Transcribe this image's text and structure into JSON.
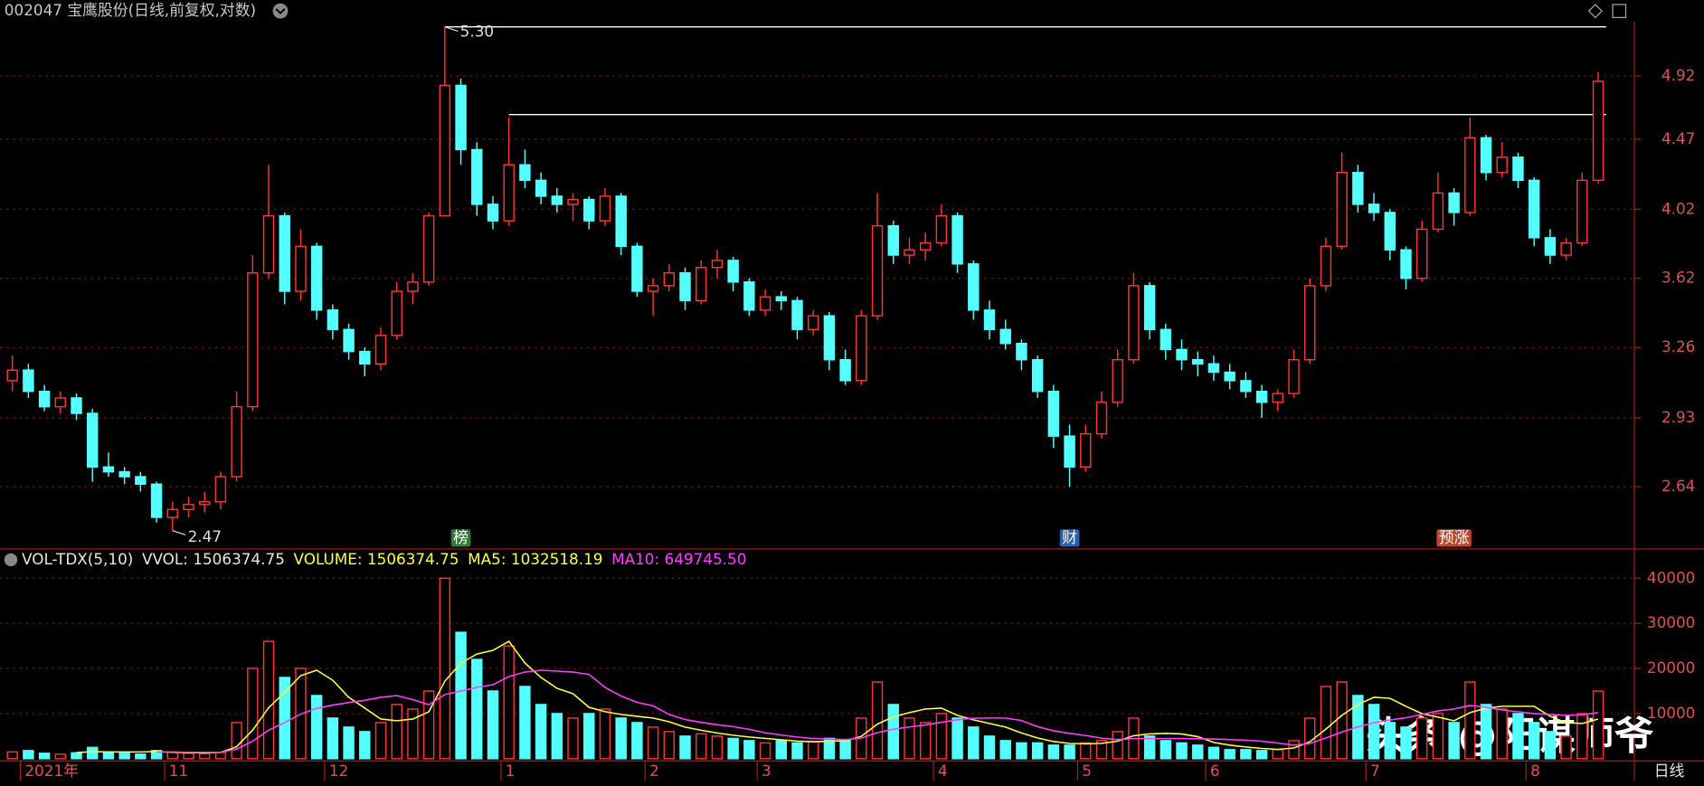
{
  "chart_data": [
    {
      "type": "candlestick",
      "title": "002047 宝鹰股份(日线,前复权,对数)",
      "log": true,
      "grid": true,
      "ylim": [
        2.41,
        5.34
      ],
      "yticks": [
        4.92,
        4.47,
        4.02,
        3.62,
        3.26,
        2.93,
        2.64
      ],
      "xlim": [
        -0.5,
        99.5
      ],
      "xticks": [
        {
          "value": 1,
          "label": "2021年"
        },
        {
          "value": 10,
          "label": "11"
        },
        {
          "value": 20,
          "label": "12"
        },
        {
          "value": 31,
          "label": "1"
        },
        {
          "value": 40,
          "label": "2"
        },
        {
          "value": 47,
          "label": "3"
        },
        {
          "value": 58,
          "label": "4"
        },
        {
          "value": 67,
          "label": "5"
        },
        {
          "value": 75,
          "label": "6"
        },
        {
          "value": 85,
          "label": "7"
        },
        {
          "value": 95,
          "label": "8"
        }
      ],
      "period_label": "日线",
      "up_color": "#ff3232",
      "down_color": "#54ffff",
      "open": [
        3.1,
        3.15,
        3.05,
        2.98,
        3.02,
        2.95,
        2.72,
        2.7,
        2.68,
        2.65,
        2.52,
        2.55,
        2.57,
        2.58,
        2.68,
        2.98,
        3.65,
        3.98,
        3.55,
        3.8,
        3.45,
        3.35,
        3.24,
        3.18,
        3.32,
        3.55,
        3.6,
        3.98,
        4.85,
        4.4,
        4.05,
        3.95,
        4.3,
        4.2,
        4.1,
        4.05,
        4.08,
        3.95,
        4.1,
        3.8,
        3.55,
        3.58,
        3.65,
        3.5,
        3.68,
        3.72,
        3.6,
        3.45,
        3.52,
        3.5,
        3.35,
        3.42,
        3.2,
        3.1,
        3.42,
        3.92,
        3.75,
        3.78,
        3.82,
        3.98,
        3.7,
        3.45,
        3.35,
        3.28,
        3.2,
        3.05,
        2.85,
        2.72,
        2.86,
        3.0,
        3.2,
        3.58,
        3.35,
        3.25,
        3.2,
        3.18,
        3.14,
        3.1,
        3.05,
        3.0,
        3.04,
        3.2,
        3.58,
        3.8,
        4.25,
        4.05,
        4.0,
        3.78,
        3.62,
        3.9,
        4.12,
        4.0,
        4.48,
        4.25,
        4.35,
        4.2,
        3.85,
        3.75,
        3.82,
        4.2
      ],
      "high": [
        3.22,
        3.18,
        3.08,
        3.05,
        3.04,
        2.97,
        2.78,
        2.72,
        2.7,
        2.66,
        2.58,
        2.6,
        2.62,
        2.7,
        3.05,
        3.75,
        4.3,
        4.0,
        3.9,
        3.82,
        3.48,
        3.38,
        3.26,
        3.36,
        3.6,
        3.65,
        4.0,
        5.3,
        4.9,
        4.45,
        4.1,
        4.62,
        4.4,
        4.25,
        4.15,
        4.12,
        4.1,
        4.15,
        4.12,
        3.82,
        3.62,
        3.7,
        3.68,
        3.72,
        3.78,
        3.74,
        3.62,
        3.56,
        3.55,
        3.52,
        3.45,
        3.44,
        3.25,
        3.45,
        4.12,
        3.95,
        3.85,
        3.88,
        4.05,
        4.0,
        3.72,
        3.5,
        3.4,
        3.3,
        3.22,
        3.08,
        2.9,
        2.9,
        3.05,
        3.25,
        3.65,
        3.6,
        3.38,
        3.3,
        3.24,
        3.22,
        3.18,
        3.14,
        3.08,
        3.06,
        3.25,
        3.62,
        3.85,
        4.38,
        4.3,
        4.12,
        4.02,
        3.8,
        3.95,
        4.25,
        4.15,
        4.62,
        4.5,
        4.45,
        4.38,
        4.22,
        3.9,
        3.85,
        4.25,
        4.95
      ],
      "low": [
        3.05,
        3.02,
        2.96,
        2.95,
        2.92,
        2.66,
        2.68,
        2.65,
        2.62,
        2.5,
        2.47,
        2.52,
        2.54,
        2.55,
        2.66,
        2.96,
        3.62,
        3.48,
        3.5,
        3.4,
        3.3,
        3.2,
        3.12,
        3.15,
        3.3,
        3.48,
        3.58,
        3.98,
        4.3,
        3.98,
        3.9,
        3.92,
        4.15,
        4.05,
        4.0,
        3.95,
        3.9,
        3.92,
        3.75,
        3.52,
        3.42,
        3.55,
        3.45,
        3.48,
        3.62,
        3.55,
        3.42,
        3.42,
        3.45,
        3.3,
        3.32,
        3.15,
        3.08,
        3.08,
        3.4,
        3.7,
        3.7,
        3.72,
        3.8,
        3.65,
        3.4,
        3.3,
        3.25,
        3.15,
        3.02,
        2.8,
        2.64,
        2.7,
        2.84,
        2.98,
        3.18,
        3.3,
        3.2,
        3.15,
        3.12,
        3.1,
        3.06,
        3.02,
        2.93,
        2.96,
        3.02,
        3.18,
        3.55,
        3.78,
        4.0,
        3.95,
        3.72,
        3.56,
        3.6,
        3.88,
        3.92,
        3.98,
        4.2,
        4.22,
        4.15,
        3.8,
        3.7,
        3.72,
        3.8,
        4.18
      ],
      "close": [
        3.15,
        3.05,
        2.98,
        3.02,
        2.95,
        2.72,
        2.7,
        2.68,
        2.65,
        2.52,
        2.55,
        2.57,
        2.58,
        2.68,
        2.98,
        3.65,
        3.98,
        3.55,
        3.8,
        3.45,
        3.35,
        3.24,
        3.18,
        3.32,
        3.55,
        3.6,
        3.98,
        4.85,
        4.4,
        4.05,
        3.95,
        4.3,
        4.2,
        4.1,
        4.05,
        4.08,
        3.95,
        4.1,
        3.8,
        3.55,
        3.58,
        3.65,
        3.5,
        3.68,
        3.72,
        3.6,
        3.45,
        3.52,
        3.5,
        3.35,
        3.42,
        3.2,
        3.1,
        3.42,
        3.92,
        3.75,
        3.78,
        3.82,
        3.98,
        3.7,
        3.45,
        3.35,
        3.28,
        3.2,
        3.05,
        2.85,
        2.72,
        2.86,
        3.0,
        3.2,
        3.58,
        3.35,
        3.25,
        3.2,
        3.18,
        3.14,
        3.1,
        3.05,
        3.0,
        3.04,
        3.2,
        3.58,
        3.8,
        4.25,
        4.05,
        4.0,
        3.78,
        3.62,
        3.9,
        4.12,
        4.0,
        4.48,
        4.25,
        4.35,
        4.2,
        3.85,
        3.75,
        3.82,
        4.2,
        4.88
      ],
      "annotations": [
        {
          "index": 27,
          "value": 5.3,
          "label": "5.30"
        },
        {
          "index": 10,
          "value": 2.47,
          "label": "2.47"
        }
      ],
      "reference_lines": [
        {
          "start": 27,
          "value": 5.3
        },
        {
          "start": 31,
          "value": 4.64
        }
      ],
      "reference_color": "#ffffff",
      "events": [
        {
          "index": 28,
          "label": "榜",
          "color": "#2f7d32"
        },
        {
          "index": 66,
          "label": "财",
          "color": "#2a5fae"
        },
        {
          "index": 90,
          "label": "预涨",
          "color": "#c0452a"
        }
      ]
    },
    {
      "type": "volume",
      "indicator": "VOL-TDX(5,10)",
      "readouts": [
        {
          "text": "VVOL: 1506374.75",
          "color": "#e6e6e6"
        },
        {
          "text": "VOLUME: 1506374.75",
          "color": "#ffff3c"
        },
        {
          "text": "MA5: 1032518.19",
          "color": "#ffff3c"
        },
        {
          "text": "MA10: 649745.50",
          "color": "#ff3cff"
        }
      ],
      "ylim": [
        0,
        46000
      ],
      "yticks": [
        40000,
        30000,
        20000,
        10000
      ],
      "values": [
        1500,
        1800,
        1200,
        1000,
        1300,
        2500,
        1500,
        1200,
        1000,
        1800,
        1500,
        1200,
        1100,
        1400,
        8000,
        20000,
        26000,
        18000,
        20000,
        14000,
        9000,
        7000,
        6000,
        8000,
        12000,
        11000,
        15000,
        40000,
        28000,
        22000,
        15000,
        25000,
        16000,
        12000,
        10000,
        9000,
        10000,
        11000,
        9000,
        8000,
        7000,
        6000,
        5000,
        5500,
        5000,
        4500,
        4000,
        3500,
        4000,
        3500,
        3800,
        4500,
        4000,
        9000,
        17000,
        12000,
        9000,
        8000,
        10000,
        9000,
        7000,
        5000,
        4000,
        3500,
        3500,
        3000,
        3000,
        3500,
        4000,
        6000,
        9000,
        5000,
        4000,
        3500,
        3000,
        2500,
        2000,
        2000,
        1800,
        2000,
        4000,
        9000,
        16000,
        17000,
        14000,
        12000,
        8000,
        7000,
        9000,
        10000,
        8000,
        17000,
        12000,
        11000,
        10000,
        8000,
        6000,
        5000,
        10000,
        15000
      ],
      "series": [
        {
          "name": "MA5",
          "color": "#ffff3c",
          "values": [
            null,
            null,
            null,
            null,
            1360,
            1560,
            1500,
            1500,
            1500,
            1600,
            1400,
            1340,
            1320,
            1400,
            2640,
            6340,
            11300,
            14680,
            18400,
            19600,
            17400,
            13600,
            11200,
            8800,
            8400,
            8800,
            10400,
            17200,
            21200,
            23200,
            24000,
            26000,
            21200,
            18000,
            15600,
            14400,
            11400,
            10400,
            9800,
            9400,
            9000,
            8200,
            7000,
            6300,
            5700,
            5200,
            4800,
            4500,
            4200,
            3900,
            3760,
            3860,
            3960,
            4960,
            7660,
            9300,
            10200,
            11000,
            11200,
            9600,
            8600,
            7800,
            7000,
            5700,
            4600,
            3800,
            3400,
            3300,
            3400,
            3900,
            5100,
            5500,
            5600,
            5500,
            4900,
            3600,
            3000,
            2600,
            2260,
            2060,
            2360,
            3760,
            6560,
            9600,
            12000,
            13600,
            13400,
            11600,
            10000,
            9200,
            8400,
            10200,
            11200,
            11600,
            11600,
            11600,
            9400,
            8000,
            7800,
            8800
          ]
        },
        {
          "name": "MA10",
          "color": "#ff3cff",
          "values": [
            null,
            null,
            null,
            null,
            null,
            null,
            null,
            null,
            null,
            1480,
            1480,
            1420,
            1410,
            1450,
            2120,
            3870,
            6320,
            8000,
            9900,
            11120,
            11870,
            12450,
            12940,
            13600,
            14000,
            13100,
            12000,
            14200,
            15000,
            15800,
            16400,
            18200,
            19200,
            19600,
            19400,
            19200,
            18700,
            15800,
            13900,
            12500,
            11700,
            9800,
            8700,
            8050,
            7550,
            7100,
            6500,
            5750,
            5250,
            4800,
            4480,
            4330,
            4230,
            4580,
            5780,
            6530,
            7030,
            7480,
            8080,
            8630,
            8950,
            9000,
            9000,
            8450,
            7100,
            6200,
            5600,
            5150,
            4550,
            4250,
            4450,
            4450,
            4450,
            4450,
            4400,
            4350,
            4250,
            4100,
            3880,
            3480,
            2980,
            3380,
            4580,
            5930,
            7030,
            7980,
            8580,
            9080,
            9800,
            10600,
            11000,
            11800,
            11400,
            10800,
            10400,
            10000,
            9800,
            9600,
            9700,
            10200
          ]
        }
      ]
    }
  ],
  "watermark": "头条 @阳谋师爷"
}
